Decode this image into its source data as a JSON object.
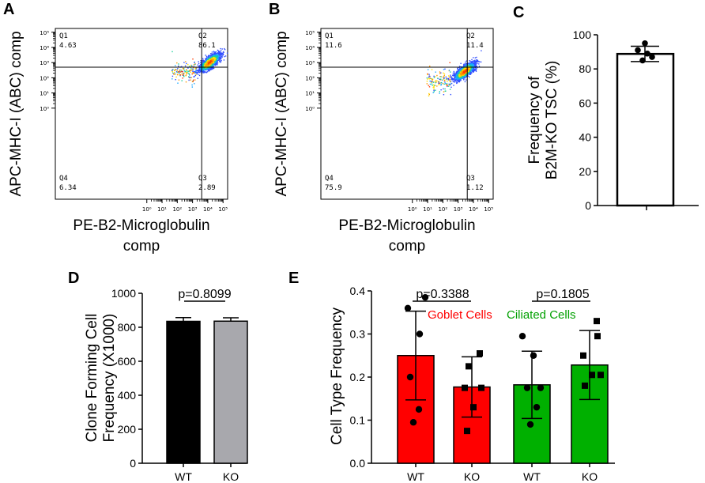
{
  "chart_data": [
    {
      "panel": "A",
      "type": "scatter",
      "xlabel_line1": "PE-B2-Microglobulin",
      "xlabel_line2": "comp",
      "ylabel": "APC-MHC-I (ABC) comp",
      "x_ticks": [
        "10⁰",
        "10¹",
        "10²",
        "10³",
        "10⁴",
        "10⁵"
      ],
      "y_ticks": [
        "10⁰",
        "10¹",
        "10²",
        "10³",
        "10⁴",
        "10⁵"
      ],
      "quadrants": [
        {
          "name": "Q1",
          "value": "4.63"
        },
        {
          "name": "Q2",
          "value": "86.1"
        },
        {
          "name": "Q3",
          "value": "2.89"
        },
        {
          "name": "Q4",
          "value": "6.34"
        }
      ],
      "gate_log": [
        3.6,
        2.7
      ],
      "cluster_log": [
        4.1,
        3.05
      ]
    },
    {
      "panel": "B",
      "type": "scatter",
      "xlabel_line1": "PE-B2-Microglobulin",
      "xlabel_line2": "comp",
      "ylabel": "APC-MHC-I (ABC) comp",
      "x_ticks": [
        "10⁰",
        "10¹",
        "10²",
        "10³",
        "10⁴",
        "10⁵"
      ],
      "y_ticks": [
        "10⁰",
        "10¹",
        "10²",
        "10³",
        "10⁴",
        "10⁵"
      ],
      "quadrants": [
        {
          "name": "Q1",
          "value": "11.6"
        },
        {
          "name": "Q2",
          "value": "11.4"
        },
        {
          "name": "Q3",
          "value": "1.12"
        },
        {
          "name": "Q4",
          "value": "75.9"
        }
      ],
      "gate_log": [
        3.6,
        2.7
      ],
      "cluster_log": [
        3.4,
        2.45
      ]
    },
    {
      "panel": "C",
      "type": "bar",
      "categories": [
        ""
      ],
      "values": [
        88.8
      ],
      "error": [
        4.5
      ],
      "points": [
        95,
        91,
        87,
        85,
        89
      ],
      "ylabel_line1": "Frequency of",
      "ylabel_line2": "B2M-KO TSC (%)",
      "ylim": [
        0,
        100
      ],
      "yticks": [
        0,
        20,
        40,
        60,
        80,
        100
      ]
    },
    {
      "panel": "D",
      "type": "bar",
      "categories": [
        "WT",
        "KO"
      ],
      "values": [
        835,
        836
      ],
      "error": [
        22,
        20
      ],
      "colors": [
        "#000000",
        "#a8a8ad"
      ],
      "ylabel_line1": "Clone Forming Cell",
      "ylabel_line2": "Frequency (X1000)",
      "ylim": [
        0,
        1000
      ],
      "yticks": [
        0,
        200,
        400,
        600,
        800,
        1000
      ],
      "pvalue": "p=0.8099"
    },
    {
      "panel": "E",
      "type": "bar",
      "categories": [
        "WT",
        "KO",
        "WT",
        "KO"
      ],
      "values": [
        0.25,
        0.177,
        0.182,
        0.228
      ],
      "error": [
        0.103,
        0.07,
        0.078,
        0.08
      ],
      "colors": [
        "#ff0000",
        "#ff0000",
        "#00b000",
        "#00b000"
      ],
      "points": [
        [
          0.36,
          0.385,
          0.3,
          0.2,
          0.125,
          0.095
        ],
        [
          0.255,
          0.225,
          0.175,
          0.175,
          0.13,
          0.075
        ],
        [
          0.295,
          0.25,
          0.175,
          0.175,
          0.13,
          0.09
        ],
        [
          0.33,
          0.295,
          0.25,
          0.205,
          0.205,
          0.18
        ]
      ],
      "markers": [
        "circle",
        "square",
        "circle",
        "square"
      ],
      "ylabel": "Cell Type Frequency",
      "ylim": [
        0,
        0.4
      ],
      "yticks": [
        "0.0",
        "0.1",
        "0.2",
        "0.3",
        "0.4"
      ],
      "pvalues": [
        "p=0.3388",
        "p=0.1805"
      ],
      "annotations": [
        {
          "text": "Goblet Cells",
          "color": "#ff0000"
        },
        {
          "text": "Ciliated Cells",
          "color": "#00a000"
        }
      ]
    }
  ],
  "panel_labels": [
    "A",
    "B",
    "C",
    "D",
    "E"
  ]
}
